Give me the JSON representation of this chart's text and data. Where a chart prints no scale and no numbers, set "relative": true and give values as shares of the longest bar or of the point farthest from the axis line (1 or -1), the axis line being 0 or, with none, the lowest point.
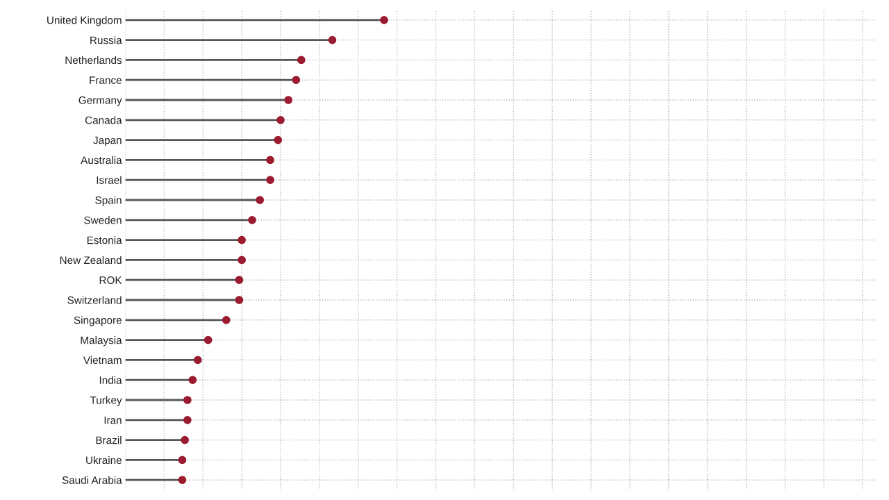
{
  "chart_data": {
    "type": "lollipop",
    "orientation": "horizontal",
    "relative": true,
    "grid": true,
    "tick_labels": "y",
    "marker": "circle",
    "categories": [
      "United Kingdom",
      "Russia",
      "Netherlands",
      "France",
      "Germany",
      "Canada",
      "Japan",
      "Australia",
      "Israel",
      "Spain",
      "Sweden",
      "Estonia",
      "New Zealand",
      "ROK",
      "Switzerland",
      "Singapore",
      "Malaysia",
      "Vietnam",
      "India",
      "Turkey",
      "Iran",
      "Brazil",
      "Ukraine",
      "Saudi Arabia"
    ],
    "series": [
      {
        "color": "#9b1b30",
        "values": [
          1,
          0.8,
          0.68,
          0.66,
          0.63,
          0.6,
          0.59,
          0.56,
          0.56,
          0.52,
          0.49,
          0.45,
          0.45,
          0.44,
          0.44,
          0.39,
          0.32,
          0.28,
          0.26,
          0.24,
          0.24,
          0.23,
          0.22,
          0.22
        ]
      }
    ]
  }
}
